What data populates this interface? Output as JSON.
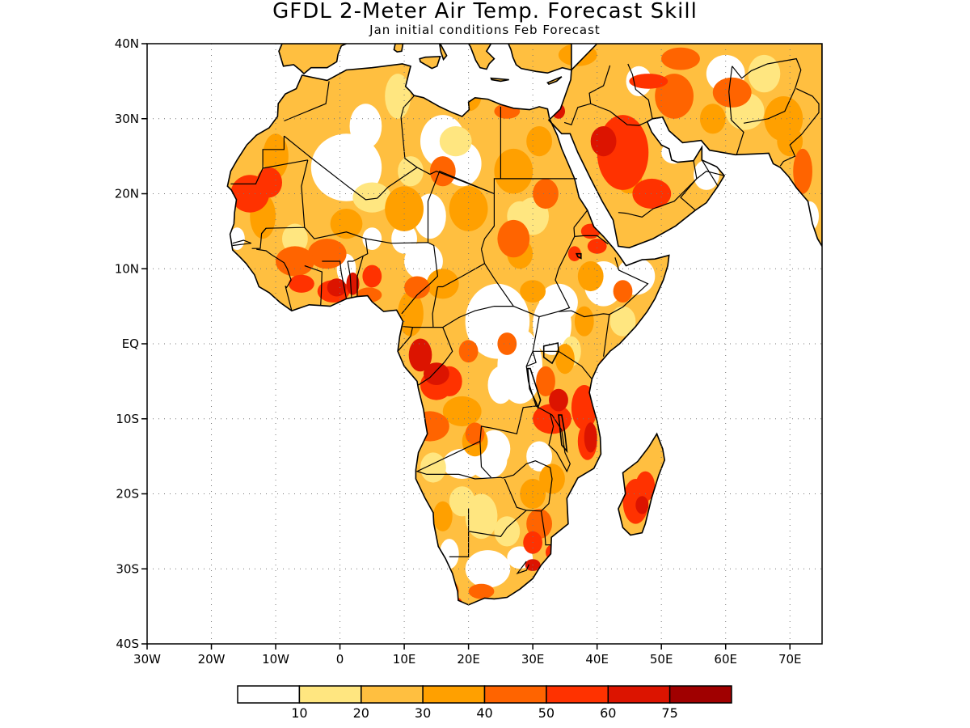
{
  "header": {
    "title": "GFDL 2-Meter Air Temp. Forecast Skill",
    "subtitle": "Jan initial conditions  Feb Forecast"
  },
  "axes": {
    "lat_labels": [
      "40N",
      "30N",
      "20N",
      "10N",
      "EQ",
      "10S",
      "20S",
      "30S",
      "40S"
    ],
    "lon_labels": [
      "30W",
      "20W",
      "10W",
      "0",
      "10E",
      "20E",
      "30E",
      "40E",
      "50E",
      "60E",
      "70E"
    ],
    "lat_range": [
      -40,
      40
    ],
    "lon_range": [
      -30,
      75
    ],
    "grid": "dotted"
  },
  "colorbar": {
    "boundaries": [
      "10",
      "20",
      "30",
      "40",
      "50",
      "60",
      "75"
    ],
    "colors": [
      "#ffffff",
      "#ffe680",
      "#ffbf40",
      "#ffa000",
      "#ff6400",
      "#ff3200",
      "#dc1400",
      "#a00000"
    ]
  },
  "colors": {
    "coast": "#000000",
    "ocean": "#ffffff"
  }
}
